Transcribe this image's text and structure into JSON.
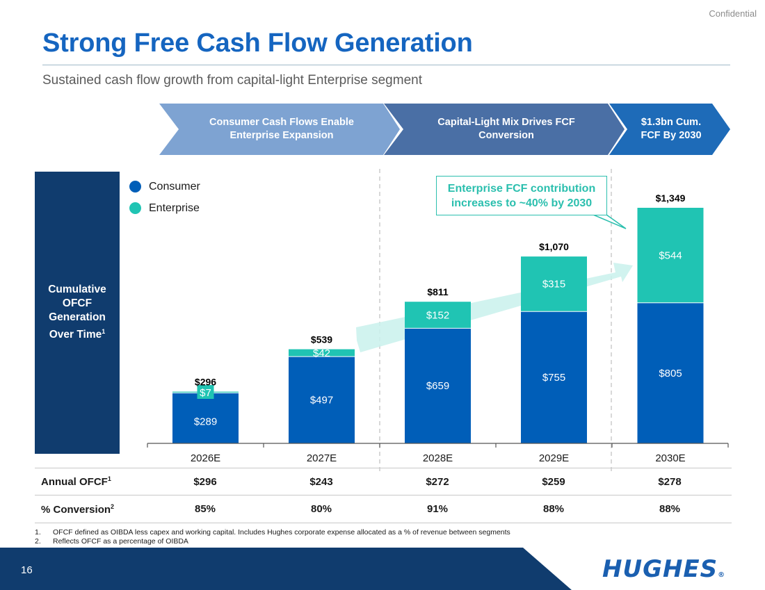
{
  "header": {
    "confidential": "Confidential",
    "title": "Strong Free Cash Flow Generation",
    "subtitle": "Sustained cash flow growth from capital-light Enterprise segment"
  },
  "chevrons": [
    {
      "label": "Consumer Cash Flows Enable Enterprise Expansion",
      "color": "#7ea3d2"
    },
    {
      "label": "Capital-Light Mix Drives FCF Conversion",
      "color": "#4a6fa5"
    },
    {
      "label": "$1.3bn Cum. FCF By 2030",
      "color": "#1e6bb8"
    }
  ],
  "side_panel": {
    "label": "Cumulative OFCF Generation Over Time",
    "footnote_mark": "1"
  },
  "legend": [
    {
      "label": "Consumer",
      "color": "#005eb8"
    },
    {
      "label": "Enterprise",
      "color": "#20c4b3"
    }
  ],
  "callout": {
    "text": "Enterprise FCF contribution increases to ~40% by 2030"
  },
  "chart_data": {
    "type": "bar",
    "stacked": true,
    "categories": [
      "2026E",
      "2027E",
      "2028E",
      "2029E",
      "2030E"
    ],
    "series": [
      {
        "name": "Consumer",
        "values": [
          289,
          497,
          659,
          755,
          805
        ],
        "labels": [
          "$289",
          "$497",
          "$659",
          "$755",
          "$805"
        ],
        "color": "#005eb8"
      },
      {
        "name": "Enterprise",
        "values": [
          7,
          42,
          152,
          315,
          544
        ],
        "labels": [
          "$7",
          "$42",
          "$152",
          "$315",
          "$544"
        ],
        "color": "#20c4b3"
      }
    ],
    "totals": [
      296,
      539,
      811,
      1070,
      1349
    ],
    "total_labels": [
      "$296",
      "$539",
      "$811",
      "$1,070",
      "$1,349"
    ],
    "ylim": [
      0,
      1400
    ],
    "grid": false
  },
  "table": {
    "rows": [
      {
        "label": "Annual OFCF",
        "mark": "1",
        "values": [
          "$296",
          "$243",
          "$272",
          "$259",
          "$278"
        ]
      },
      {
        "label": "% Conversion",
        "mark": "2",
        "values": [
          "85%",
          "80%",
          "91%",
          "88%",
          "88%"
        ]
      }
    ]
  },
  "footnotes": [
    {
      "num": "1.",
      "text": "OFCF defined as OIBDA less capex and working capital. Includes Hughes corporate expense allocated as a % of revenue between segments"
    },
    {
      "num": "2.",
      "text": "Reflects OFCF as a percentage of OIBDA"
    }
  ],
  "footer": {
    "page_number": "16",
    "logo": "HUGHES",
    "logo_mark": "®"
  }
}
